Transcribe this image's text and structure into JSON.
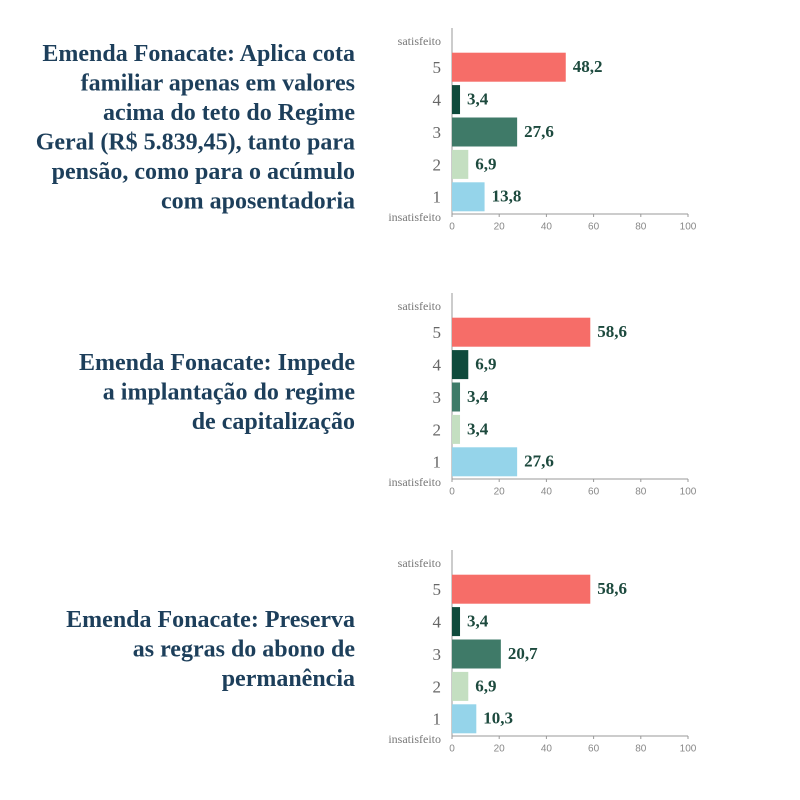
{
  "chart_data": [
    {
      "type": "bar",
      "orientation": "horizontal",
      "title": [
        "Emenda Fonacate: Aplica cota",
        "familiar apenas em valores",
        "acima do teto do Regime",
        "Geral (R$ 5.839,45), tanto para",
        "pensão, como para o acúmulo",
        "com aposentadoria"
      ],
      "top_label": "satisfeito",
      "bottom_label": "insatisfeito",
      "categories": [
        "5",
        "4",
        "3",
        "2",
        "1"
      ],
      "values": [
        48.2,
        3.4,
        27.6,
        6.9,
        13.8
      ],
      "value_labels": [
        "48,2",
        "3,4",
        "27,6",
        "6,9",
        "13,8"
      ],
      "colors": [
        "#f66d68",
        "#0f4a3c",
        "#3f7a68",
        "#c4dfc1",
        "#95d4ea"
      ],
      "xlim": [
        0,
        100
      ],
      "xticks": [
        0,
        20,
        40,
        60,
        80,
        100
      ]
    },
    {
      "type": "bar",
      "orientation": "horizontal",
      "title": [
        "Emenda Fonacate: Impede",
        "a implantação do regime",
        "de capitalização"
      ],
      "top_label": "satisfeito",
      "bottom_label": "insatisfeito",
      "categories": [
        "5",
        "4",
        "3",
        "2",
        "1"
      ],
      "values": [
        58.6,
        6.9,
        3.4,
        3.4,
        27.6
      ],
      "value_labels": [
        "58,6",
        "6,9",
        "3,4",
        "3,4",
        "27,6"
      ],
      "colors": [
        "#f66d68",
        "#0f4a3c",
        "#3f7a68",
        "#c4dfc1",
        "#95d4ea"
      ],
      "xlim": [
        0,
        100
      ],
      "xticks": [
        0,
        20,
        40,
        60,
        80,
        100
      ]
    },
    {
      "type": "bar",
      "orientation": "horizontal",
      "title": [
        "Emenda Fonacate: Preserva",
        "as regras do abono de",
        "permanência"
      ],
      "top_label": "satisfeito",
      "bottom_label": "insatisfeito",
      "categories": [
        "5",
        "4",
        "3",
        "2",
        "1"
      ],
      "values": [
        58.6,
        3.4,
        20.7,
        6.9,
        10.3
      ],
      "value_labels": [
        "58,6",
        "3,4",
        "20,7",
        "6,9",
        "10,3"
      ],
      "colors": [
        "#f66d68",
        "#0f4a3c",
        "#3f7a68",
        "#c4dfc1",
        "#95d4ea"
      ],
      "xlim": [
        0,
        100
      ],
      "xticks": [
        0,
        20,
        40,
        60,
        80,
        100
      ]
    }
  ]
}
